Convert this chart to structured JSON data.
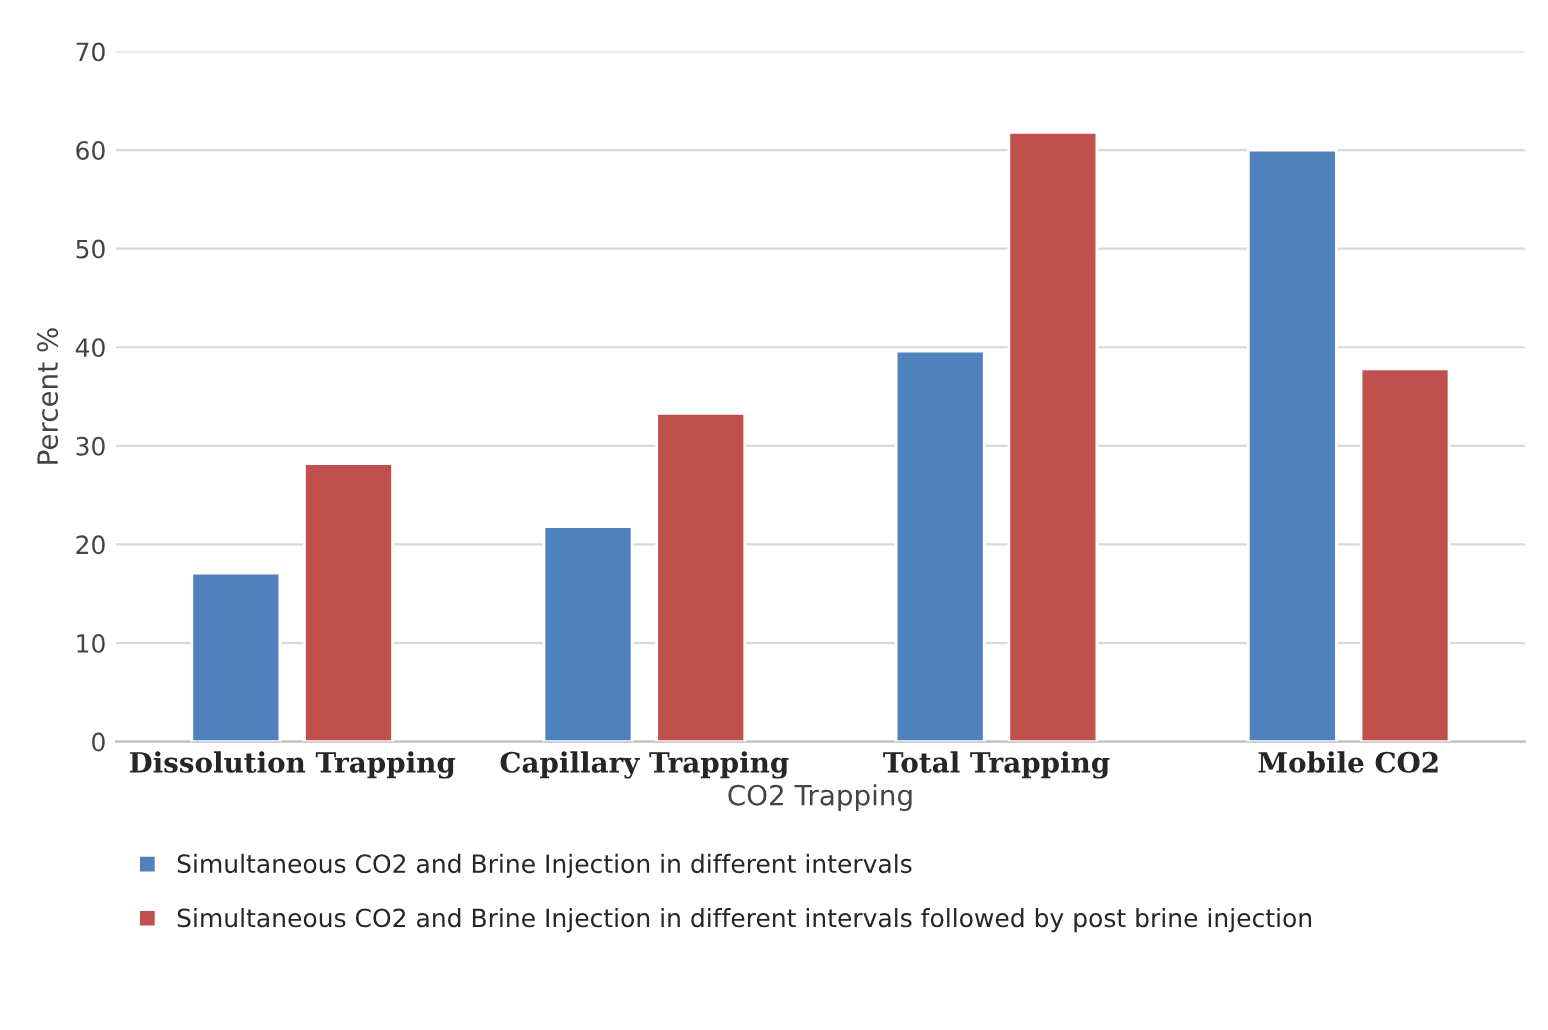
{
  "chart_data": {
    "type": "bar",
    "xlabel": "CO2 Trapping",
    "ylabel": "Percent %",
    "categories": [
      "Dissolution Trapping",
      "Capillary Trapping",
      "Total Trapping",
      "Mobile CO2"
    ],
    "series": [
      {
        "name": "Simultaneous CO2 and Brine Injection in different intervals",
        "color": "#4f81bd",
        "values": [
          17.1,
          21.8,
          39.6,
          60.0
        ]
      },
      {
        "name": "Simultaneous CO2 and Brine Injection in different intervals followed by post brine injection",
        "color": "#c0504d",
        "values": [
          28.2,
          33.3,
          61.8,
          37.8
        ]
      }
    ],
    "ylim": [
      0,
      70
    ],
    "yticks": [
      0,
      10,
      20,
      30,
      40,
      50,
      60,
      70
    ],
    "grid": "y",
    "legend": "bottom"
  }
}
